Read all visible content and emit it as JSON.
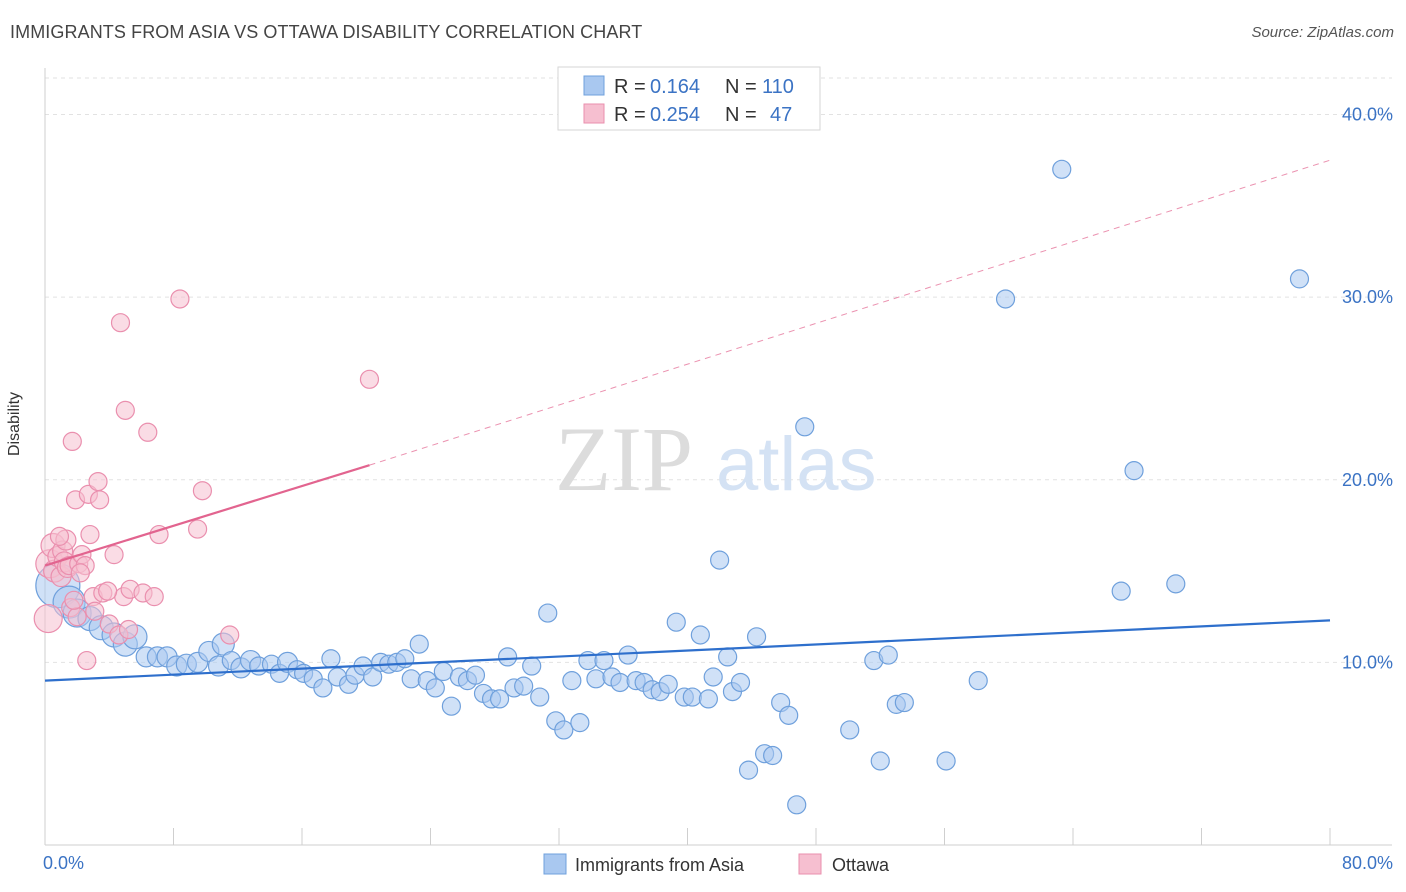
{
  "header": {
    "title": "IMMIGRANTS FROM ASIA VS OTTAWA DISABILITY CORRELATION CHART",
    "source": "Source: ZipAtlas.com"
  },
  "watermark": {
    "zip": "ZIP",
    "atlas": "atlas"
  },
  "stats_legend": [
    {
      "r_label": "R =",
      "r_value": "0.164",
      "n_label": "N =",
      "n_value": "110",
      "color": "#6fa6e6"
    },
    {
      "r_label": "R =",
      "r_value": "0.254",
      "n_label": "N =",
      "n_value": "47",
      "color": "#f0a0ba"
    }
  ],
  "colors": {
    "blue_fill": "#a9c8f0",
    "blue_stroke": "#6fa0dc",
    "blue_line": "#2e6fcc",
    "pink_fill": "#f6bfd0",
    "pink_stroke": "#ea8fae",
    "pink_line": "#e2648f",
    "tick_text": "#3b73c4"
  },
  "chart_data": {
    "type": "scatter",
    "title": "IMMIGRANTS FROM ASIA VS OTTAWA DISABILITY CORRELATION CHART",
    "xlabel": "",
    "ylabel": "Disability",
    "xlim": [
      0,
      80
    ],
    "ylim": [
      0,
      42
    ],
    "x_tick_labels": [
      "0.0%",
      "80.0%"
    ],
    "y_ticks": [
      10,
      20,
      30,
      40
    ],
    "y_tick_labels": [
      "10.0%",
      "20.0%",
      "30.0%",
      "40.0%"
    ],
    "grid": true,
    "legend_position": "bottom",
    "series": [
      {
        "name": "Immigrants from Asia",
        "color": "#6fa6e6",
        "trend": {
          "x": [
            0,
            80
          ],
          "y": [
            9.0,
            12.3
          ]
        },
        "points": [
          [
            0.8,
            14.2,
            22
          ],
          [
            1.5,
            13.3,
            16
          ],
          [
            2.0,
            12.7,
            14
          ],
          [
            2.8,
            12.4,
            12
          ],
          [
            3.5,
            11.9,
            12
          ],
          [
            4.3,
            11.5,
            12
          ],
          [
            5.0,
            11.0,
            12
          ],
          [
            5.6,
            11.4,
            12
          ],
          [
            6.3,
            10.3,
            10
          ],
          [
            7.0,
            10.3,
            10
          ],
          [
            7.6,
            10.3,
            10
          ],
          [
            8.2,
            9.8,
            10
          ],
          [
            8.8,
            9.9,
            10
          ],
          [
            9.5,
            10.0,
            10
          ],
          [
            10.2,
            10.6,
            10
          ],
          [
            10.8,
            9.8,
            10
          ],
          [
            11.1,
            11.0,
            11
          ],
          [
            11.6,
            10.1,
            9
          ],
          [
            12.2,
            9.7,
            10
          ],
          [
            12.8,
            10.1,
            10
          ],
          [
            13.3,
            9.8,
            9
          ],
          [
            14.1,
            9.9,
            9
          ],
          [
            14.6,
            9.4,
            9
          ],
          [
            15.1,
            10.0,
            10
          ],
          [
            15.7,
            9.6,
            9
          ],
          [
            16.1,
            9.4,
            9
          ],
          [
            16.7,
            9.1,
            9
          ],
          [
            17.3,
            8.6,
            9
          ],
          [
            17.8,
            10.2,
            9
          ],
          [
            18.2,
            9.2,
            9
          ],
          [
            18.9,
            8.8,
            9
          ],
          [
            19.3,
            9.3,
            9
          ],
          [
            19.8,
            9.8,
            9
          ],
          [
            20.4,
            9.2,
            9
          ],
          [
            20.9,
            10.0,
            9
          ],
          [
            21.4,
            9.9,
            9
          ],
          [
            21.9,
            10.0,
            9
          ],
          [
            22.4,
            10.2,
            9
          ],
          [
            22.8,
            9.1,
            9
          ],
          [
            23.3,
            11.0,
            9
          ],
          [
            23.8,
            9.0,
            9
          ],
          [
            24.3,
            8.6,
            9
          ],
          [
            24.8,
            9.5,
            9
          ],
          [
            25.3,
            7.6,
            9
          ],
          [
            25.8,
            9.2,
            9
          ],
          [
            26.3,
            9.0,
            9
          ],
          [
            26.8,
            9.3,
            9
          ],
          [
            27.3,
            8.3,
            9
          ],
          [
            27.8,
            8.0,
            9
          ],
          [
            28.3,
            8.0,
            9
          ],
          [
            28.8,
            10.3,
            9
          ],
          [
            29.2,
            8.6,
            9
          ],
          [
            29.8,
            8.7,
            9
          ],
          [
            30.3,
            9.8,
            9
          ],
          [
            30.8,
            8.1,
            9
          ],
          [
            31.3,
            12.7,
            9
          ],
          [
            31.8,
            6.8,
            9
          ],
          [
            32.3,
            6.3,
            9
          ],
          [
            32.8,
            9.0,
            9
          ],
          [
            33.3,
            6.7,
            9
          ],
          [
            33.8,
            10.1,
            9
          ],
          [
            34.3,
            9.1,
            9
          ],
          [
            34.8,
            10.1,
            9
          ],
          [
            35.3,
            9.2,
            9
          ],
          [
            35.8,
            8.9,
            9
          ],
          [
            36.3,
            10.4,
            9
          ],
          [
            36.8,
            9.0,
            9
          ],
          [
            37.3,
            8.9,
            9
          ],
          [
            37.8,
            8.5,
            9
          ],
          [
            38.3,
            8.4,
            9
          ],
          [
            38.8,
            8.8,
            9
          ],
          [
            39.3,
            12.2,
            9
          ],
          [
            39.8,
            8.1,
            9
          ],
          [
            40.3,
            8.1,
            9
          ],
          [
            40.8,
            11.5,
            9
          ],
          [
            41.3,
            8.0,
            9
          ],
          [
            41.6,
            9.2,
            9
          ],
          [
            42.0,
            15.6,
            9
          ],
          [
            42.5,
            10.3,
            9
          ],
          [
            42.8,
            8.4,
            9
          ],
          [
            43.3,
            8.9,
            9
          ],
          [
            43.8,
            4.1,
            9
          ],
          [
            44.3,
            11.4,
            9
          ],
          [
            44.8,
            5.0,
            9
          ],
          [
            45.3,
            4.9,
            9
          ],
          [
            45.8,
            7.8,
            9
          ],
          [
            46.3,
            7.1,
            9
          ],
          [
            46.8,
            2.2,
            9
          ],
          [
            47.3,
            22.9,
            0
          ],
          [
            50.1,
            6.3,
            9
          ],
          [
            51.6,
            10.1,
            9
          ],
          [
            52.0,
            4.6,
            9
          ],
          [
            52.5,
            10.4,
            9
          ],
          [
            53.0,
            7.7,
            9
          ],
          [
            53.5,
            7.8,
            9
          ],
          [
            56.1,
            4.6,
            9
          ],
          [
            58.1,
            9.0,
            9
          ],
          [
            59.8,
            29.9,
            9
          ],
          [
            63.3,
            37.0,
            9
          ],
          [
            67.0,
            13.9,
            9
          ],
          [
            67.8,
            20.5,
            9
          ],
          [
            70.4,
            14.3,
            9
          ],
          [
            78.1,
            31.0,
            9
          ]
        ]
      },
      {
        "name": "Ottawa",
        "color": "#f0a0ba",
        "trend": {
          "x": [
            0,
            20.2
          ],
          "y": [
            15.3,
            20.8
          ],
          "dashed_to": [
            80,
            37.5
          ]
        },
        "points": [
          [
            0.2,
            12.4,
            14
          ],
          [
            0.3,
            15.4,
            14
          ],
          [
            0.5,
            16.4,
            12
          ],
          [
            0.6,
            15.0,
            11
          ],
          [
            0.8,
            15.8,
            10
          ],
          [
            1.0,
            14.7,
            10
          ],
          [
            1.1,
            16.1,
            10
          ],
          [
            1.2,
            15.5,
            10
          ],
          [
            1.3,
            16.7,
            10
          ],
          [
            1.4,
            15.2,
            10
          ],
          [
            1.5,
            15.3,
            9
          ],
          [
            1.6,
            13.0,
            9
          ],
          [
            1.7,
            22.1,
            9
          ],
          [
            1.9,
            18.9,
            9
          ],
          [
            2.0,
            12.5,
            9
          ],
          [
            2.1,
            15.4,
            9
          ],
          [
            2.3,
            15.9,
            9
          ],
          [
            2.5,
            15.3,
            9
          ],
          [
            2.6,
            10.1,
            9
          ],
          [
            2.7,
            19.2,
            9
          ],
          [
            2.8,
            17.0,
            9
          ],
          [
            3.0,
            13.6,
            9
          ],
          [
            3.1,
            12.8,
            9
          ],
          [
            3.3,
            19.9,
            9
          ],
          [
            3.4,
            18.9,
            9
          ],
          [
            3.6,
            13.8,
            9
          ],
          [
            4.0,
            12.1,
            9
          ],
          [
            4.3,
            15.9,
            9
          ],
          [
            4.6,
            11.5,
            9
          ],
          [
            4.7,
            28.6,
            9
          ],
          [
            4.9,
            13.6,
            9
          ],
          [
            5.0,
            23.8,
            9
          ],
          [
            5.2,
            11.8,
            9
          ],
          [
            5.3,
            14.0,
            9
          ],
          [
            6.1,
            13.8,
            9
          ],
          [
            6.4,
            22.6,
            9
          ],
          [
            6.8,
            13.6,
            9
          ],
          [
            7.1,
            17.0,
            9
          ],
          [
            8.4,
            29.9,
            9
          ],
          [
            9.5,
            17.3,
            9
          ],
          [
            9.8,
            19.4,
            9
          ],
          [
            11.5,
            11.5,
            9
          ],
          [
            20.2,
            25.5,
            9
          ],
          [
            2.2,
            14.9,
            9
          ],
          [
            1.8,
            13.4,
            9
          ],
          [
            0.9,
            16.9,
            9
          ],
          [
            3.9,
            13.9,
            9
          ]
        ]
      }
    ]
  },
  "bottom_legend": [
    {
      "label": "Immigrants from Asia"
    },
    {
      "label": "Ottawa"
    }
  ]
}
